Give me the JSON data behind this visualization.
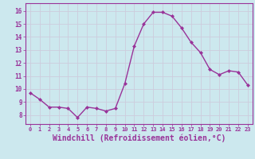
{
  "x": [
    0,
    1,
    2,
    3,
    4,
    5,
    6,
    7,
    8,
    9,
    10,
    11,
    12,
    13,
    14,
    15,
    16,
    17,
    18,
    19,
    20,
    21,
    22,
    23
  ],
  "y": [
    9.7,
    9.2,
    8.6,
    8.6,
    8.5,
    7.8,
    8.6,
    8.5,
    8.3,
    8.5,
    10.4,
    13.3,
    15.0,
    15.9,
    15.9,
    15.6,
    14.7,
    13.6,
    12.8,
    11.5,
    11.1,
    11.4,
    11.3,
    10.3
  ],
  "line_color": "#993399",
  "marker": "D",
  "marker_size": 2.0,
  "linewidth": 1.0,
  "xlabel": "Windchill (Refroidissement éolien,°C)",
  "xlabel_fontsize": 7,
  "xtick_labels": [
    "0",
    "1",
    "2",
    "3",
    "4",
    "5",
    "6",
    "7",
    "8",
    "9",
    "10",
    "11",
    "12",
    "13",
    "14",
    "15",
    "16",
    "17",
    "18",
    "19",
    "20",
    "21",
    "22",
    "23"
  ],
  "yticks": [
    8,
    9,
    10,
    11,
    12,
    13,
    14,
    15,
    16
  ],
  "ylim": [
    7.3,
    16.6
  ],
  "xlim": [
    -0.5,
    23.5
  ],
  "bg_color": "#cce8ee",
  "grid_color": "#ccccdd",
  "tick_color": "#993399",
  "label_color": "#993399",
  "spine_color": "#993399"
}
